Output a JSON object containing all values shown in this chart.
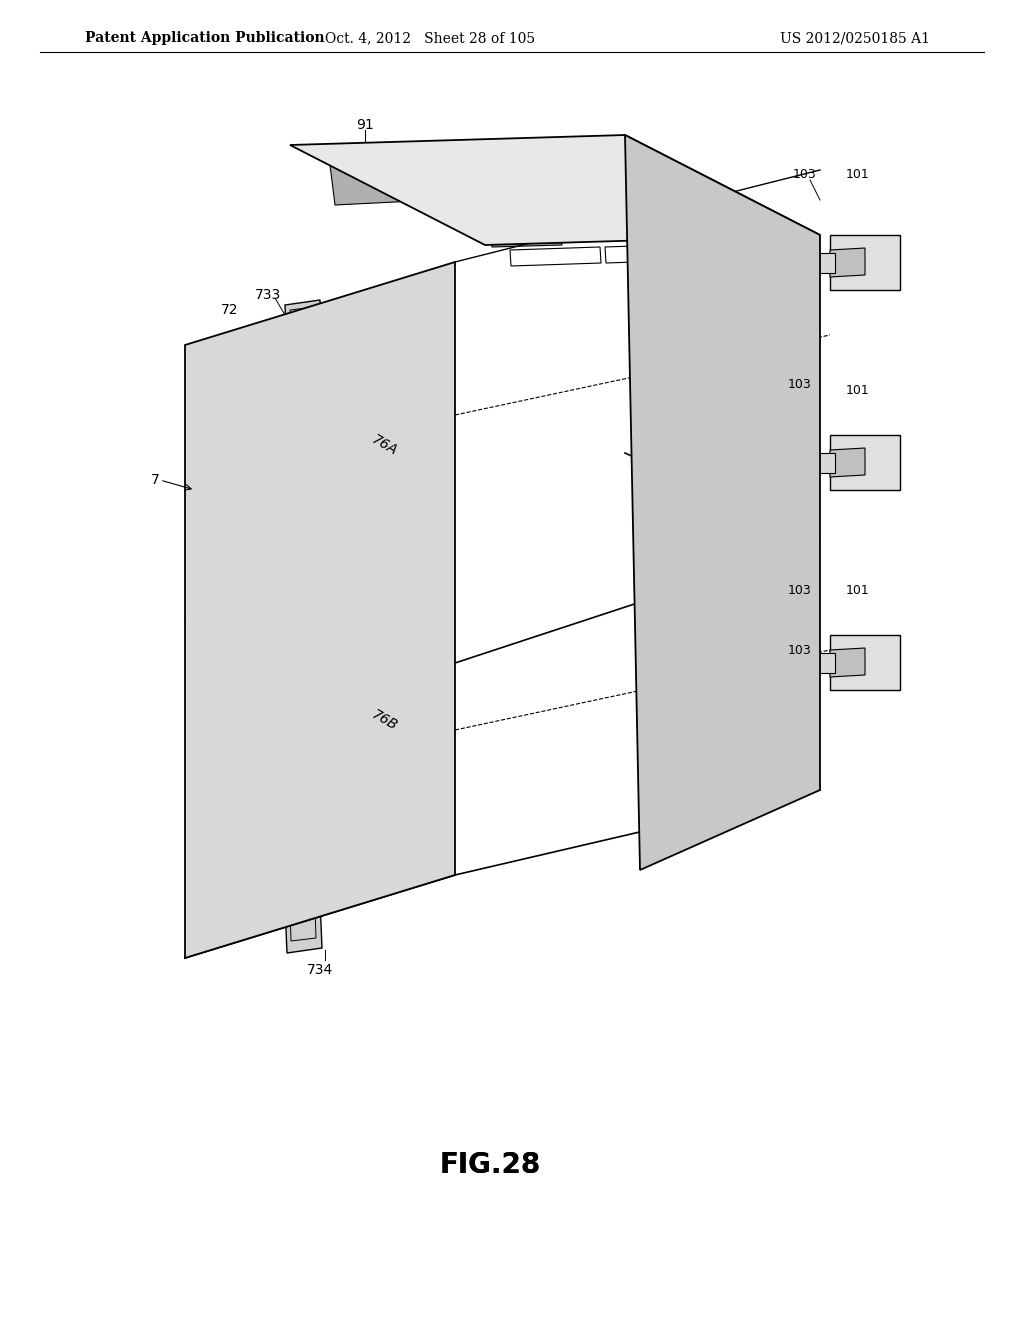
{
  "bg_color": "#ffffff",
  "header_left": "Patent Application Publication",
  "header_center": "Oct. 4, 2012   Sheet 28 of 105",
  "header_right": "US 2012/0250185 A1",
  "figure_label": "FIG.28",
  "header_fontsize": 10,
  "figure_label_fontsize": 18,
  "line_color": "#000000",
  "line_width": 1.2,
  "label_fontsize": 10
}
